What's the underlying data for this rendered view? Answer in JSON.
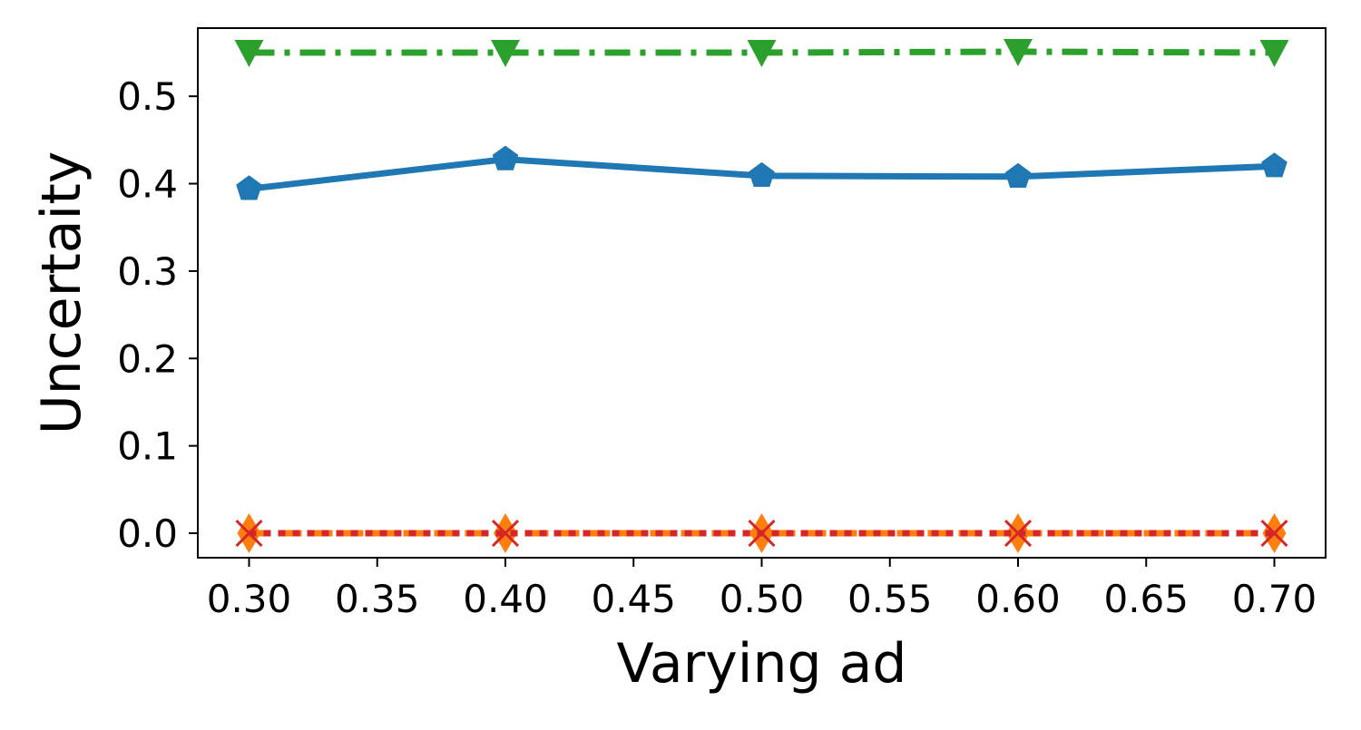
{
  "chart_data": {
    "type": "line",
    "title": "",
    "xlabel": "Varying ad",
    "ylabel": "Uncertaity",
    "xlim": [
      0.28,
      0.72
    ],
    "ylim": [
      -0.028,
      0.578
    ],
    "xticks": [
      "0.30",
      "0.35",
      "0.40",
      "0.45",
      "0.50",
      "0.55",
      "0.60",
      "0.65",
      "0.70"
    ],
    "xtick_values": [
      0.3,
      0.35,
      0.4,
      0.45,
      0.5,
      0.55,
      0.6,
      0.65,
      0.7
    ],
    "yticks": [
      "0.0",
      "0.1",
      "0.2",
      "0.3",
      "0.4",
      "0.5"
    ],
    "ytick_values": [
      0.0,
      0.1,
      0.2,
      0.3,
      0.4,
      0.5
    ],
    "grid": false,
    "legend": "none",
    "x": [
      0.3,
      0.4,
      0.5,
      0.6,
      0.7
    ],
    "series": [
      {
        "values": [
          0.394,
          0.428,
          0.409,
          0.408,
          0.42
        ],
        "color": "#1f77b4",
        "marker": "pentagon",
        "linestyle": "solid"
      },
      {
        "values": [
          0.0,
          0.0,
          0.0,
          0.0,
          0.0
        ],
        "color": "#ff7f0e",
        "marker": "thin-diamond",
        "linestyle": "dashed"
      },
      {
        "values": [
          0.55,
          0.55,
          0.55,
          0.551,
          0.55
        ],
        "color": "#2ca02c",
        "marker": "triangle-down",
        "linestyle": "dash-dot"
      },
      {
        "values": [
          0.0,
          0.0,
          0.0,
          0.0,
          0.0
        ],
        "color": "#d62728",
        "marker": "x",
        "linestyle": "dotted"
      }
    ]
  }
}
